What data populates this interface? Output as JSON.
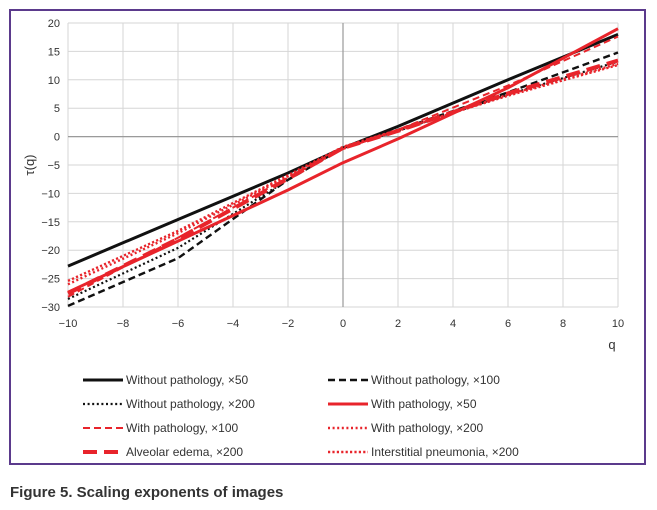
{
  "caption": "Figure 5. Scaling exponents of images",
  "chart_data": {
    "type": "line",
    "title": "",
    "xlabel": "q",
    "ylabel": "τ(q)",
    "xlim": [
      -10,
      10
    ],
    "ylim": [
      -30,
      20
    ],
    "xticks": [
      "−10",
      "−8",
      "−6",
      "−4",
      "−2",
      "0",
      "2",
      "4",
      "6",
      "8",
      "10"
    ],
    "yticks": [
      "20",
      "15",
      "10",
      "5",
      "0",
      "−5",
      "−10",
      "−15",
      "−20",
      "−25",
      "−30"
    ],
    "grid": true,
    "legend_position": "bottom",
    "series": [
      {
        "name": "Without pathology, ×50",
        "color": "#111111",
        "style": "solid",
        "width": 3,
        "points": [
          [
            -10,
            -22.8
          ],
          [
            -6,
            -14.6
          ],
          [
            -2,
            -6.4
          ],
          [
            0,
            -2.0
          ],
          [
            2,
            1.8
          ],
          [
            6,
            10.0
          ],
          [
            10,
            18.0
          ]
        ]
      },
      {
        "name": "Without pathology, ×100",
        "color": "#111111",
        "style": "dashed",
        "width": 2.4,
        "points": [
          [
            -10,
            -29.8
          ],
          [
            -6,
            -21.4
          ],
          [
            -2,
            -7.6
          ],
          [
            0,
            -2.0
          ],
          [
            2,
            1.2
          ],
          [
            6,
            7.8
          ],
          [
            10,
            14.8
          ]
        ]
      },
      {
        "name": "Without pathology, ×200",
        "color": "#111111",
        "style": "dotted",
        "width": 2.2,
        "points": [
          [
            -10,
            -28.6
          ],
          [
            -6,
            -19.6
          ],
          [
            -2,
            -7.6
          ],
          [
            0,
            -2.0
          ],
          [
            2,
            1.0
          ],
          [
            6,
            7.4
          ],
          [
            10,
            13.2
          ]
        ]
      },
      {
        "name": "With pathology, ×50",
        "color": "#e8242b",
        "style": "solid",
        "width": 3,
        "points": [
          [
            -10,
            -27.4
          ],
          [
            -6,
            -18.4
          ],
          [
            -2,
            -9.4
          ],
          [
            0,
            -4.6
          ],
          [
            2,
            -0.4
          ],
          [
            6,
            8.6
          ],
          [
            10,
            19.0
          ]
        ]
      },
      {
        "name": "With pathology, ×100",
        "color": "#e8242b",
        "style": "dashed",
        "width": 2,
        "points": [
          [
            -10,
            -28.2
          ],
          [
            -6,
            -17.8
          ],
          [
            -2,
            -7.2
          ],
          [
            0,
            -2.2
          ],
          [
            2,
            1.2
          ],
          [
            6,
            9.0
          ],
          [
            10,
            17.6
          ]
        ]
      },
      {
        "name": "With pathology, ×200",
        "color": "#e8242b",
        "style": "dotted",
        "width": 2.4,
        "points": [
          [
            -10,
            -26.0
          ],
          [
            -6,
            -17.0
          ],
          [
            -2,
            -7.0
          ],
          [
            0,
            -2.0
          ],
          [
            2,
            1.0
          ],
          [
            6,
            7.4
          ],
          [
            10,
            12.8
          ]
        ]
      },
      {
        "name": "Alveolar edema, ×200",
        "color": "#e8242b",
        "style": "bigdash",
        "width": 4,
        "points": [
          [
            -10,
            -27.6
          ],
          [
            -6,
            -18.0
          ],
          [
            -2,
            -7.4
          ],
          [
            0,
            -2.0
          ],
          [
            2,
            1.0
          ],
          [
            6,
            7.6
          ],
          [
            10,
            13.4
          ]
        ]
      },
      {
        "name": "Interstitial pneumonia, ×200",
        "color": "#e8242b",
        "style": "densedot",
        "width": 2.4,
        "points": [
          [
            -10,
            -25.4
          ],
          [
            -6,
            -16.6
          ],
          [
            -2,
            -6.8
          ],
          [
            0,
            -1.8
          ],
          [
            2,
            1.2
          ],
          [
            6,
            7.2
          ],
          [
            10,
            12.6
          ]
        ]
      }
    ]
  }
}
